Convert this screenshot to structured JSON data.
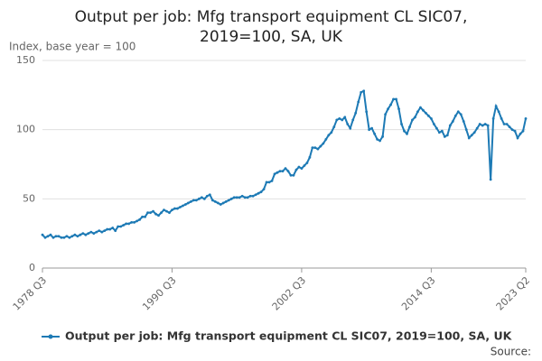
{
  "chart_data": {
    "type": "line",
    "title": "Output per job: Mfg transport equipment CL SIC07, 2019=100, SA, UK",
    "y_label": "Index, base year = 100",
    "source": "Source:",
    "categories": [
      "1978 Q3",
      null,
      null,
      null,
      null,
      null,
      null,
      null,
      null,
      null,
      null,
      null,
      null,
      null,
      null,
      null,
      null,
      null,
      null,
      null,
      null,
      null,
      null,
      null,
      null,
      null,
      null,
      null,
      null,
      null,
      null,
      null,
      null,
      null,
      null,
      null,
      null,
      null,
      null,
      null,
      null,
      null,
      null,
      null,
      null,
      null,
      null,
      null,
      "1990 Q3",
      null,
      null,
      null,
      null,
      null,
      null,
      null,
      null,
      null,
      null,
      null,
      null,
      null,
      null,
      null,
      null,
      null,
      null,
      null,
      null,
      null,
      null,
      null,
      null,
      null,
      null,
      null,
      null,
      null,
      null,
      null,
      null,
      null,
      null,
      null,
      null,
      null,
      null,
      null,
      null,
      null,
      null,
      null,
      null,
      null,
      null,
      null,
      "2002 Q3",
      null,
      null,
      null,
      null,
      null,
      null,
      null,
      null,
      null,
      null,
      null,
      null,
      null,
      null,
      null,
      null,
      null,
      null,
      null,
      null,
      null,
      null,
      null,
      null,
      null,
      null,
      null,
      null,
      null,
      null,
      null,
      null,
      null,
      null,
      null,
      null,
      null,
      null,
      null,
      null,
      null,
      null,
      null,
      null,
      null,
      null,
      null,
      "2014 Q3",
      null,
      null,
      null,
      null,
      null,
      null,
      null,
      null,
      null,
      null,
      null,
      null,
      null,
      null,
      null,
      null,
      null,
      null,
      null,
      null,
      null,
      null,
      null,
      null,
      null,
      null,
      null,
      null,
      null,
      null,
      null,
      null,
      null,
      null,
      "2023 Q2"
    ],
    "series": [
      {
        "name": "Output per job: Mfg transport equipment CL SIC07, 2019=100, SA, UK",
        "color": "#1d7ab5",
        "values": [
          24,
          22,
          23,
          24,
          22,
          23,
          23,
          22,
          22,
          23,
          22,
          23,
          24,
          23,
          24,
          25,
          24,
          25,
          26,
          25,
          26,
          27,
          26,
          27,
          28,
          28,
          29,
          27,
          30,
          30,
          31,
          32,
          32,
          33,
          33,
          34,
          35,
          37,
          37,
          40,
          40,
          41,
          39,
          38,
          40,
          42,
          41,
          40,
          42,
          43,
          43,
          44,
          45,
          46,
          47,
          48,
          49,
          49,
          50,
          51,
          50,
          52,
          53,
          49,
          48,
          47,
          46,
          47,
          48,
          49,
          50,
          51,
          51,
          51,
          52,
          51,
          51,
          52,
          52,
          53,
          54,
          55,
          57,
          62,
          62,
          63,
          68,
          69,
          70,
          70,
          72,
          70,
          67,
          67,
          71,
          73,
          72,
          74,
          76,
          80,
          87,
          87,
          86,
          88,
          90,
          93,
          96,
          98,
          102,
          107,
          108,
          107,
          109,
          104,
          101,
          107,
          112,
          120,
          127,
          128,
          113,
          100,
          101,
          97,
          93,
          92,
          95,
          111,
          115,
          118,
          122,
          122,
          115,
          104,
          99,
          97,
          102,
          107,
          109,
          113,
          116,
          114,
          112,
          110,
          108,
          104,
          101,
          98,
          99,
          95,
          96,
          103,
          106,
          110,
          113,
          111,
          106,
          100,
          94,
          96,
          98,
          101,
          104,
          103,
          104,
          103,
          64,
          108,
          117,
          113,
          108,
          104,
          104,
          102,
          100,
          99,
          94,
          97,
          99,
          108
        ]
      }
    ],
    "ylim": [
      0,
      150
    ],
    "yticks": [
      0,
      50,
      100,
      150
    ],
    "grid": true
  }
}
